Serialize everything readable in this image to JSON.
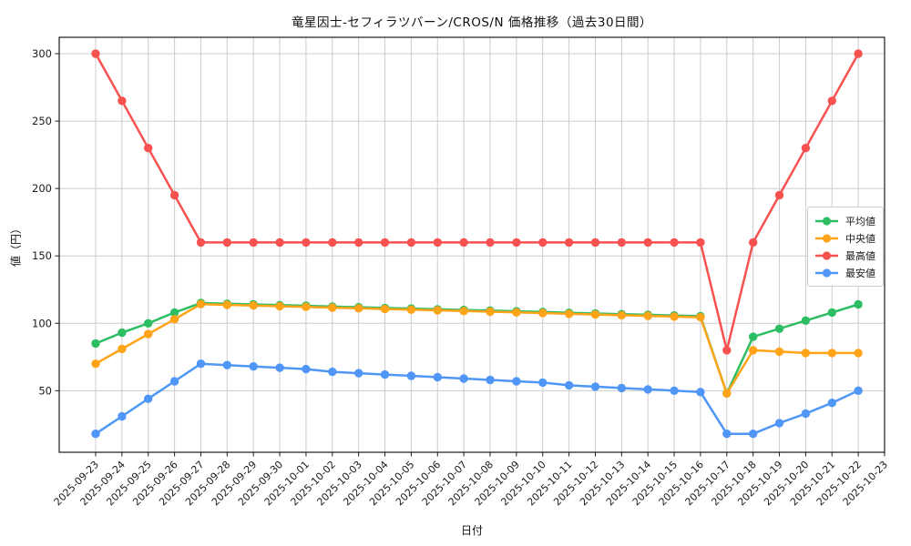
{
  "chart_data": {
    "type": "line",
    "title": "竜星因士-セフィラツバーン/CROS/N 価格推移（過去30日間）",
    "xlabel": "日付",
    "ylabel": "値（円）",
    "grid": true,
    "legend_position": "center-right",
    "ylim": [
      4,
      312
    ],
    "yticks": [
      50,
      100,
      150,
      200,
      250,
      300
    ],
    "x": [
      "2025-09-23",
      "2025-09-24",
      "2025-09-25",
      "2025-09-26",
      "2025-09-27",
      "2025-09-28",
      "2025-09-29",
      "2025-09-30",
      "2025-10-01",
      "2025-10-02",
      "2025-10-03",
      "2025-10-04",
      "2025-10-05",
      "2025-10-06",
      "2025-10-07",
      "2025-10-08",
      "2025-10-09",
      "2025-10-10",
      "2025-10-11",
      "2025-10-12",
      "2025-10-13",
      "2025-10-14",
      "2025-10-15",
      "2025-10-16",
      "2025-10-17",
      "2025-10-18",
      "2025-10-19",
      "2025-10-20",
      "2025-10-21",
      "2025-10-22"
    ],
    "x_tick_labels": [
      "2025-09-23",
      "2025-09-24",
      "2025-09-25",
      "2025-09-26",
      "2025-09-27",
      "2025-09-28",
      "2025-09-29",
      "2025-09-30",
      "2025-10-01",
      "2025-10-02",
      "2025-10-03",
      "2025-10-04",
      "2025-10-05",
      "2025-10-06",
      "2025-10-07",
      "2025-10-08",
      "2025-10-09",
      "2025-10-10",
      "2025-10-11",
      "2025-10-12",
      "2025-10-13",
      "2025-10-14",
      "2025-10-15",
      "2025-10-16",
      "2025-10-17",
      "2025-10-18",
      "2025-10-19",
      "2025-10-20",
      "2025-10-21",
      "2025-10-22",
      "2025-10-23"
    ],
    "series": [
      {
        "name": "平均値",
        "color": "#2dbe64",
        "values": [
          85,
          93,
          100,
          108,
          115,
          114.5,
          114,
          113.5,
          113,
          112.4,
          111.9,
          111.4,
          110.9,
          110.4,
          109.9,
          109.4,
          108.9,
          108.4,
          107.8,
          107.3,
          106.8,
          106.3,
          105.8,
          105.3,
          48,
          90,
          96,
          102,
          108,
          114
        ]
      },
      {
        "name": "中央値",
        "color": "#ffa318",
        "values": [
          70,
          81,
          92,
          103,
          114.2,
          113.7,
          113.2,
          112.7,
          112.2,
          111.6,
          111.1,
          110.6,
          110.1,
          109.6,
          109.1,
          108.6,
          108.1,
          107.6,
          107,
          106.5,
          106,
          105.5,
          105,
          104.5,
          48,
          80,
          79,
          78,
          78,
          78
        ]
      },
      {
        "name": "最高値",
        "color": "#f85250",
        "values": [
          300,
          265,
          230,
          195,
          160,
          160,
          160,
          160,
          160,
          160,
          160,
          160,
          160,
          160,
          160,
          160,
          160,
          160,
          160,
          160,
          160,
          160,
          160,
          160,
          80,
          160,
          195,
          230,
          265,
          300
        ]
      },
      {
        "name": "最安値",
        "color": "#5096f7",
        "values": [
          18,
          31,
          44,
          57,
          70,
          69,
          68,
          67,
          66,
          64,
          63,
          62,
          61,
          60,
          59,
          58,
          57,
          56,
          54,
          53,
          52,
          51,
          50,
          49,
          18,
          18,
          26,
          33,
          41,
          50
        ]
      }
    ]
  }
}
